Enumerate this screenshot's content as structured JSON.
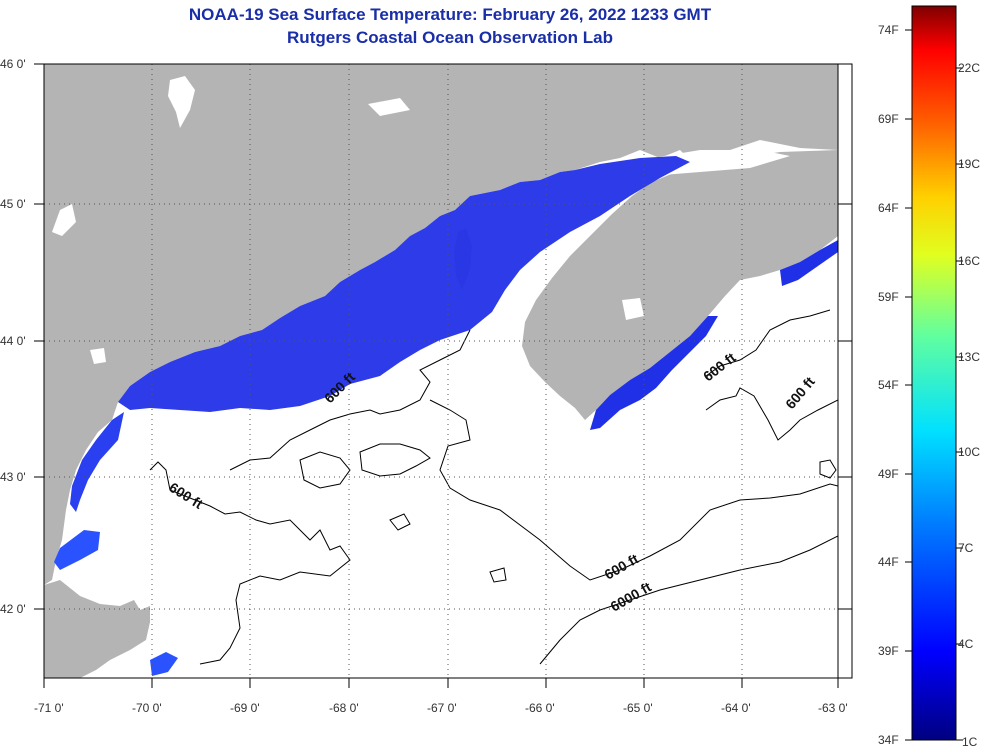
{
  "title": {
    "line1": "NOAA-19 Sea Surface Temperature:  February 26, 2022 1233 GMT",
    "line2": "Rutgers Coastal Ocean Observation Lab"
  },
  "colors": {
    "title": "#1a2ea8",
    "land": "#b4b4b4",
    "water": "#ffffff",
    "sst_cold": "#1a2cf0",
    "sst_mid": "#2d48ff",
    "border": "#000000"
  },
  "latitudes": [
    "46 0'",
    "45 0'",
    "44 0'",
    "43 0'",
    "42 0'"
  ],
  "longitudes": [
    "-71 0'",
    "-70 0'",
    "-69 0'",
    "-68 0'",
    "-67 0'",
    "-66 0'",
    "-65 0'",
    "-64 0'",
    "-63 0'"
  ],
  "contour_labels": [
    {
      "label": "600 ft"
    },
    {
      "label": "600 ft"
    },
    {
      "label": "600 ft"
    },
    {
      "label": "600 ft"
    },
    {
      "label": "600 ft"
    },
    {
      "label": "6000 ft"
    }
  ],
  "colorbar": {
    "fahrenheit": [
      "74F",
      "69F",
      "64F",
      "59F",
      "54F",
      "49F",
      "44F",
      "39F",
      "34F"
    ],
    "celsius": [
      "22C",
      "19C",
      "16C",
      "13C",
      "10C",
      "7C",
      "4C",
      "1C"
    ]
  }
}
